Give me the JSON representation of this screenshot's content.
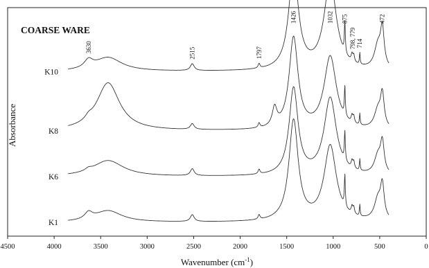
{
  "chart_data": {
    "type": "line",
    "title": "COARSE WARE",
    "xlabel_main": "Wavenumber (cm",
    "xlabel_sup": "-1",
    "xlabel_end": ")",
    "ylabel": "Absorbance",
    "xlim": [
      4500,
      0
    ],
    "xticks": [
      4500,
      4000,
      3500,
      3000,
      2500,
      2000,
      1500,
      1000,
      500,
      0
    ],
    "y_units": "arbitrary absorbance, spectra vertically offset",
    "series": [
      {
        "name": "K10",
        "offset": 0.72,
        "peaks": [
          [
            3630,
            0.035,
            55
          ],
          [
            3420,
            0.06,
            180
          ],
          [
            2515,
            0.03,
            25
          ],
          [
            1797,
            0.02,
            12
          ],
          [
            1426,
            0.44,
            62
          ],
          [
            1032,
            0.39,
            80
          ],
          [
            875,
            0.14,
            6
          ],
          [
            798,
            0.03,
            10
          ],
          [
            779,
            0.03,
            10
          ],
          [
            714,
            0.05,
            5
          ],
          [
            520,
            0.1,
            45
          ],
          [
            472,
            0.16,
            24
          ]
        ]
      },
      {
        "name": "K8",
        "offset": 0.46,
        "peaks": [
          [
            3630,
            0.015,
            40
          ],
          [
            3420,
            0.21,
            150
          ],
          [
            2515,
            0.025,
            25
          ],
          [
            1797,
            0.02,
            12
          ],
          [
            1630,
            0.08,
            30
          ],
          [
            1426,
            0.4,
            58
          ],
          [
            1032,
            0.32,
            80
          ],
          [
            875,
            0.13,
            6
          ],
          [
            798,
            0.03,
            10
          ],
          [
            779,
            0.03,
            10
          ],
          [
            714,
            0.05,
            5
          ],
          [
            520,
            0.08,
            45
          ],
          [
            472,
            0.14,
            24
          ]
        ]
      },
      {
        "name": "K6",
        "offset": 0.26,
        "peaks": [
          [
            3630,
            0.01,
            40
          ],
          [
            3420,
            0.07,
            200
          ],
          [
            2515,
            0.03,
            25
          ],
          [
            1797,
            0.02,
            12
          ],
          [
            1426,
            0.38,
            58
          ],
          [
            1032,
            0.34,
            80
          ],
          [
            875,
            0.13,
            6
          ],
          [
            798,
            0.03,
            10
          ],
          [
            779,
            0.03,
            10
          ],
          [
            714,
            0.05,
            5
          ],
          [
            520,
            0.08,
            45
          ],
          [
            472,
            0.13,
            24
          ]
        ]
      },
      {
        "name": "K1",
        "offset": 0.06,
        "peaks": [
          [
            3630,
            0.03,
            50
          ],
          [
            3420,
            0.05,
            180
          ],
          [
            2515,
            0.03,
            25
          ],
          [
            1797,
            0.02,
            12
          ],
          [
            1426,
            0.44,
            60
          ],
          [
            1032,
            0.33,
            80
          ],
          [
            875,
            0.14,
            6
          ],
          [
            798,
            0.03,
            10
          ],
          [
            779,
            0.03,
            10
          ],
          [
            714,
            0.05,
            5
          ],
          [
            520,
            0.09,
            45
          ],
          [
            472,
            0.14,
            24
          ]
        ]
      }
    ],
    "annotations": [
      {
        "text": "3630",
        "x": 3630
      },
      {
        "text": "2515",
        "x": 2515
      },
      {
        "text": "1797",
        "x": 1797
      },
      {
        "text": "1426",
        "x": 1426
      },
      {
        "text": "1032",
        "x": 1032
      },
      {
        "text": "875",
        "x": 875
      },
      {
        "text": "798, 779",
        "x": 790
      },
      {
        "text": "714",
        "x": 714
      },
      {
        "text": "472",
        "x": 472
      }
    ]
  }
}
